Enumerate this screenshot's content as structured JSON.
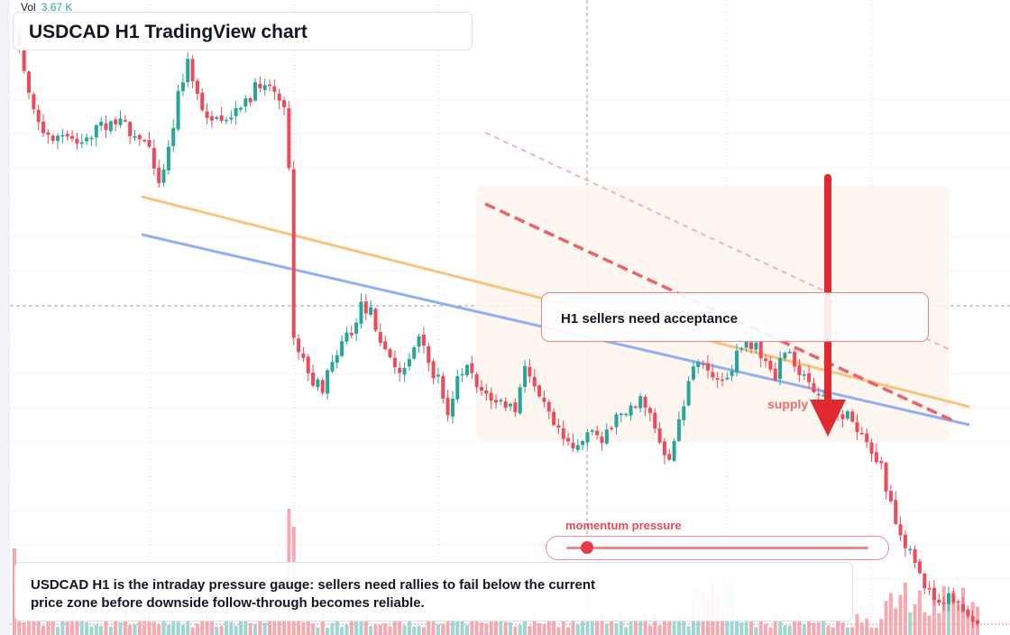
{
  "volume": {
    "label": "Vol",
    "value": "3.67 K"
  },
  "title": "USDCAD H1 TradingView chart",
  "annotations": {
    "acceptance": "H1 sellers need acceptance",
    "supply": "supply",
    "momentum_label": "momentum pressure",
    "momentum_level": 0.07,
    "summary": "USDCAD H1 is the intraday pressure gauge: sellers need rallies to fail below the current price zone before downside follow-through becomes reliable."
  },
  "colors": {
    "bull": "#26a69a",
    "bear": "#ef4a5a",
    "bull_volume": "#9fd6cf",
    "bear_volume": "#f6a9b0",
    "trend_orange": "#f7c57e",
    "trend_blue": "#93aef3",
    "arrow_red": "#e02a2f",
    "zone_fill": "#fdf4ee",
    "grid": "#d9dde4"
  },
  "chart_data": {
    "type": "candlestick",
    "y_scale": "price, ascending upward; axis tick labels not visible",
    "grid": true,
    "candles_note": "approximately 140 hourly candles; values in relative price units (higher = higher price)",
    "trendlines": [
      {
        "name": "",
        "color": "orange",
        "style": "solid"
      },
      {
        "name": "",
        "color": "blue",
        "style": "solid"
      },
      {
        "name": "",
        "color": "red",
        "style": "dashed"
      },
      {
        "name": "",
        "color": "light red",
        "style": "dashed"
      }
    ]
  }
}
